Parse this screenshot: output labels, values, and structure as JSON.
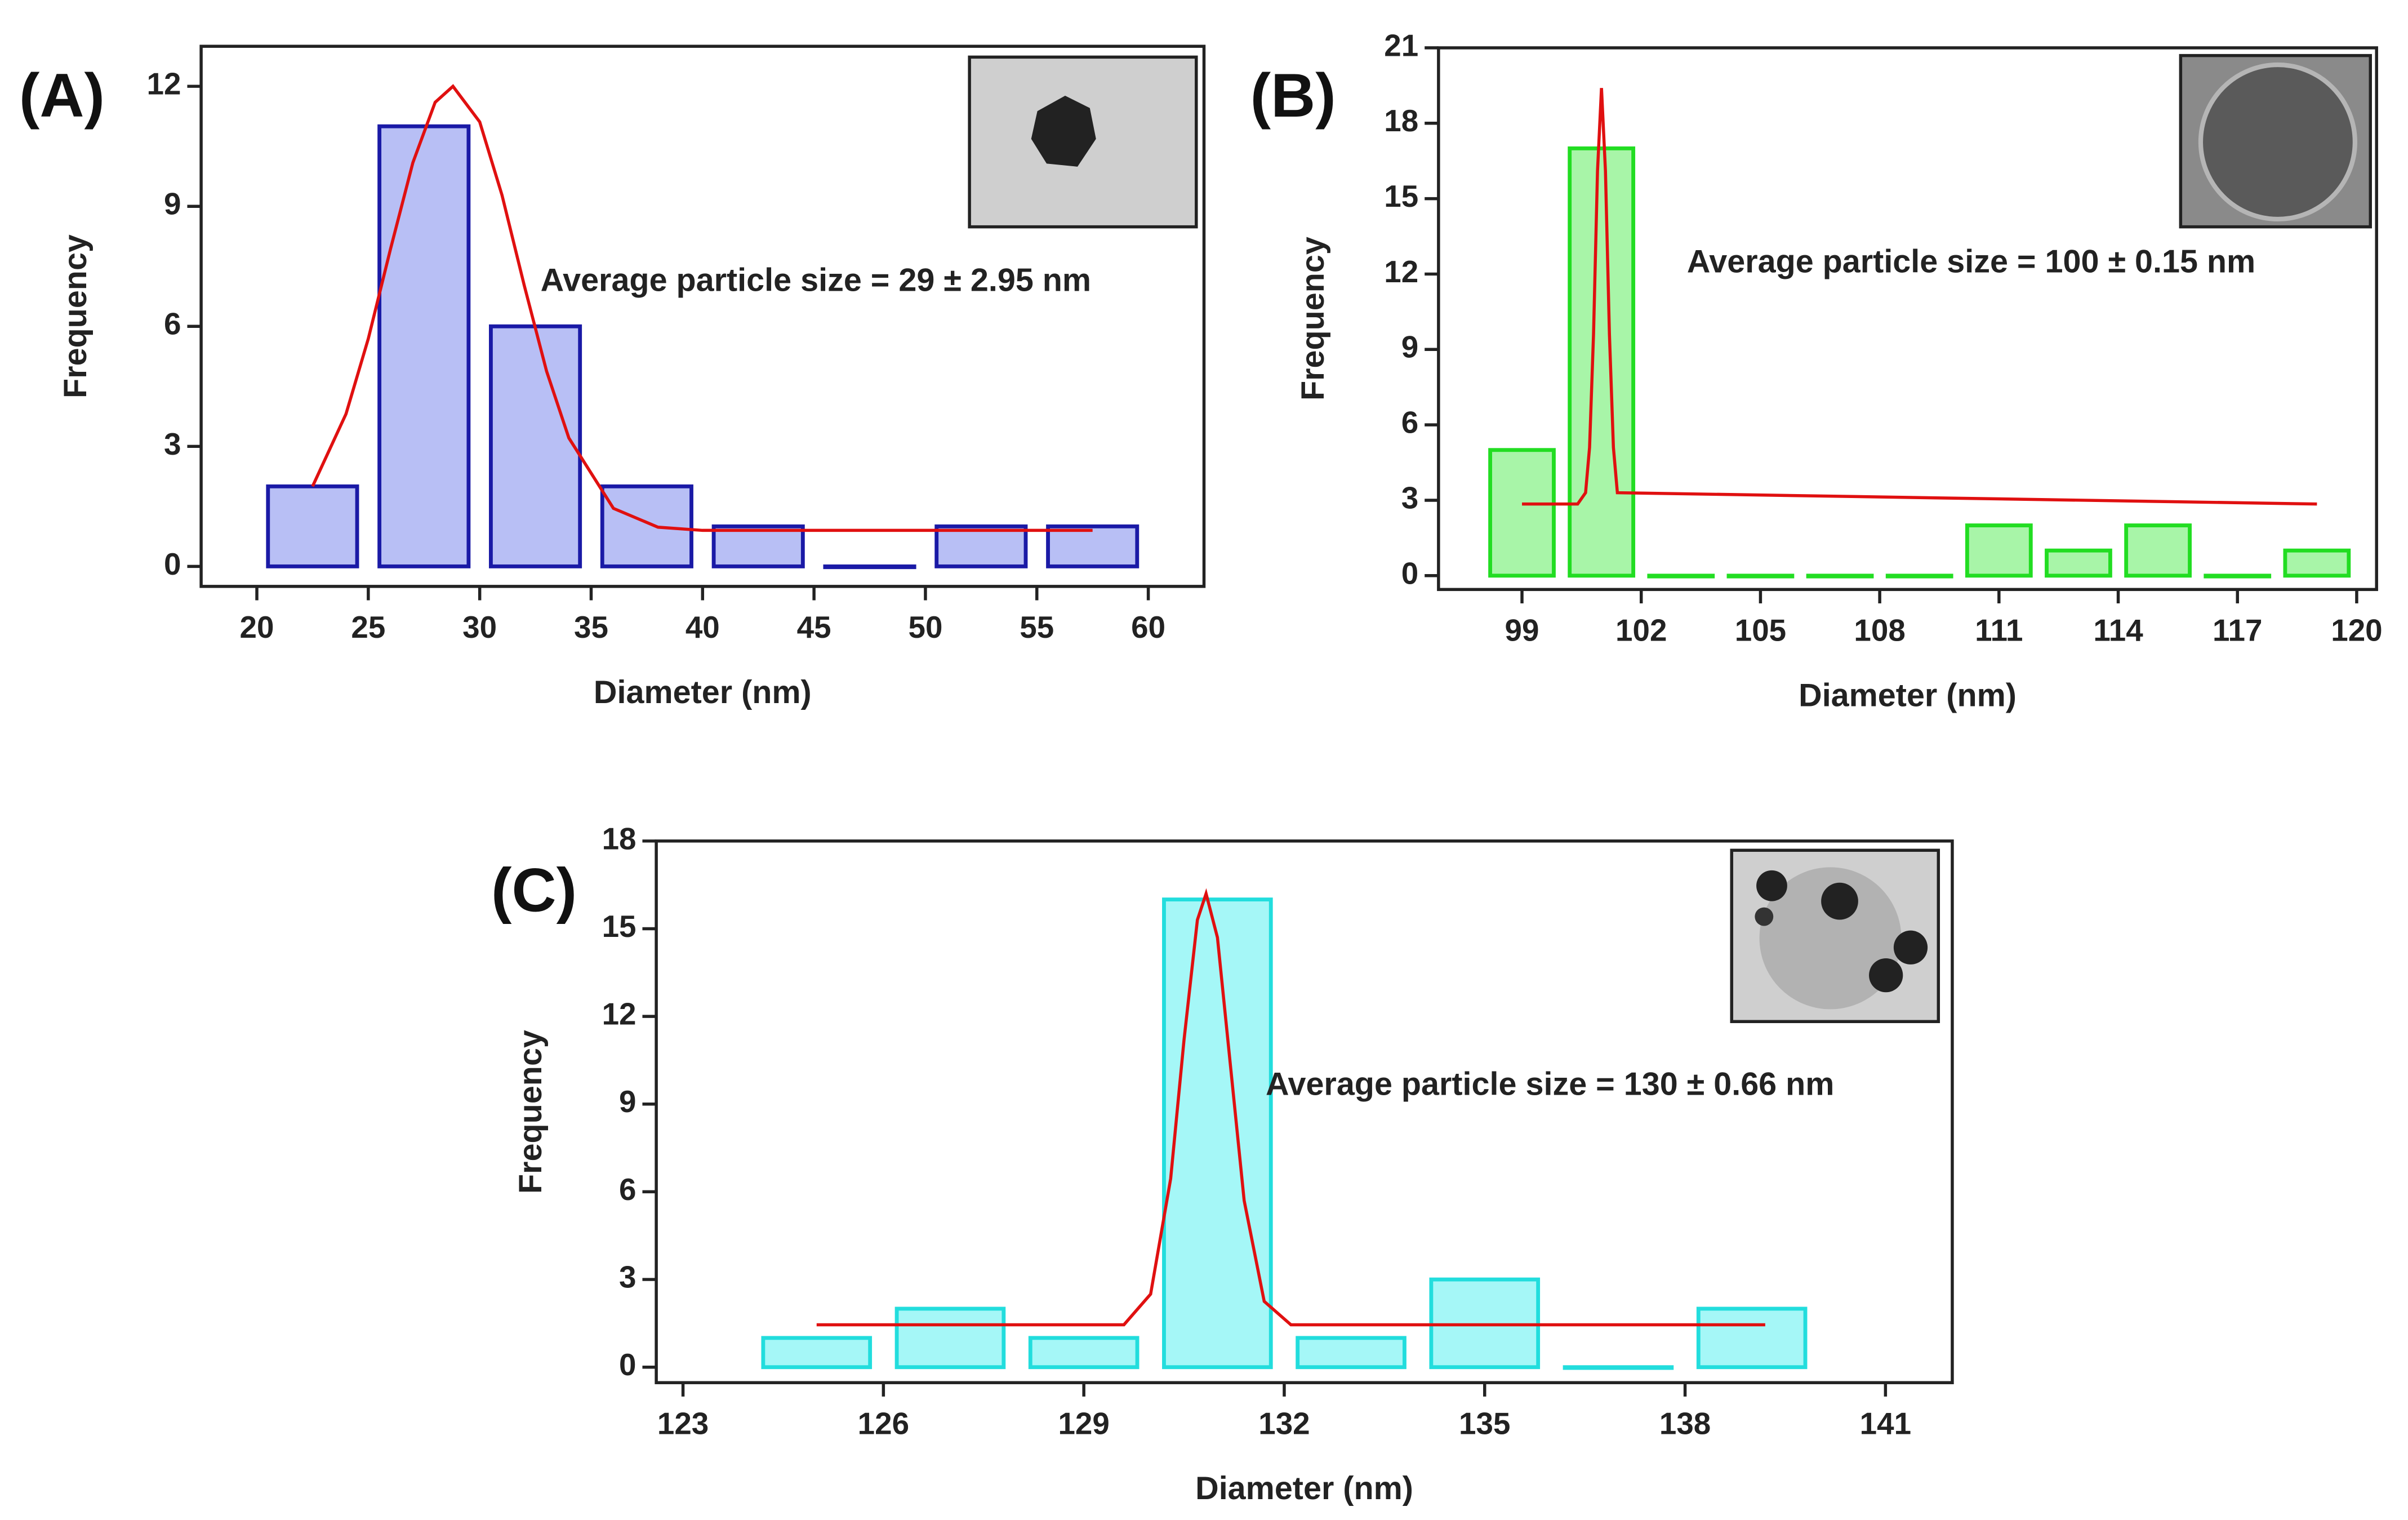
{
  "chart_data": [
    {
      "type": "histogram",
      "label": "(A)",
      "xlabel": "Diameter (nm)",
      "ylabel": "Frequency",
      "annotation": "Average particle size = 29 ± 2.95 nm",
      "bins": [
        20,
        25,
        30,
        35,
        40,
        45,
        50,
        55,
        60
      ],
      "values": [
        2,
        11,
        6,
        2,
        1,
        0,
        1,
        1
      ],
      "color": "#b8bff5",
      "edgecolor": "#1a1aa6",
      "xlim": [
        17.5,
        62.5
      ],
      "ylim": [
        -0.5,
        13
      ],
      "xticks": [
        20,
        25,
        30,
        35,
        40,
        45,
        50,
        55,
        60
      ],
      "yticks": [
        0,
        3,
        6,
        9,
        12
      ],
      "fit": {
        "color": "#e01010",
        "x": [
          22.5,
          24,
          25,
          26,
          27,
          28,
          28.8,
          30,
          31,
          32,
          33,
          34,
          36,
          38,
          40,
          57.5
        ],
        "values": [
          2.0,
          3.81,
          5.69,
          7.94,
          10.09,
          11.6,
          12.0,
          11.11,
          9.28,
          7.02,
          4.88,
          3.21,
          1.45,
          0.98,
          0.9,
          0.9
        ]
      }
    },
    {
      "type": "histogram",
      "label": "(B)",
      "xlabel": "Diameter (nm)",
      "ylabel": "Frequency",
      "annotation": "Average particle size = 100 ± 0.15 nm",
      "bins": [
        98,
        100,
        102,
        104,
        106,
        108,
        110,
        112,
        114,
        116,
        118,
        120
      ],
      "values": [
        5,
        17,
        0,
        0,
        0,
        0,
        2,
        1,
        2,
        0,
        1
      ],
      "color": "#a8f5a8",
      "edgecolor": "#22dd22",
      "xlim": [
        96.9,
        120.5
      ],
      "ylim": [
        -0.55,
        21
      ],
      "xticks": [
        99,
        102,
        105,
        108,
        111,
        114,
        117,
        120
      ],
      "yticks": [
        0,
        3,
        6,
        9,
        12,
        15,
        18,
        21
      ],
      "fit": {
        "color": "#e01010",
        "x": [
          99,
          100.4,
          100.6,
          100.7,
          100.8,
          100.9,
          101,
          101.1,
          101.2,
          101.3,
          101.4,
          119
        ],
        "values": [
          2.85,
          2.85,
          3.3,
          5.1,
          9.6,
          16.1,
          19.4,
          16.1,
          9.6,
          5.1,
          3.3,
          2.85
        ]
      }
    },
    {
      "type": "histogram",
      "label": "(C)",
      "xlabel": "Diameter (nm)",
      "ylabel": "Frequency",
      "annotation": "Average particle size = 130 ± 0.66 nm",
      "bins": [
        124,
        126,
        128,
        130,
        132,
        134,
        136,
        138,
        140
      ],
      "values": [
        1,
        2,
        1,
        16,
        1,
        3,
        0,
        2
      ],
      "color": "#a5f7f7",
      "edgecolor": "#22dddd",
      "xlim": [
        122.6,
        142
      ],
      "ylim": [
        -0.53,
        18
      ],
      "xticks": [
        123,
        126,
        129,
        132,
        135,
        138,
        141
      ],
      "yticks": [
        0,
        3,
        6,
        9,
        12,
        15,
        18
      ],
      "fit": {
        "color": "#e01010",
        "x": [
          125,
          129.6,
          130,
          130.3,
          130.5,
          130.7,
          130.83,
          131,
          131.2,
          131.4,
          131.7,
          132.1,
          139.2
        ],
        "values": [
          1.45,
          1.45,
          2.5,
          6.45,
          11.2,
          15.3,
          16.2,
          14.7,
          10.2,
          5.7,
          2.25,
          1.45,
          1.45
        ]
      }
    }
  ]
}
